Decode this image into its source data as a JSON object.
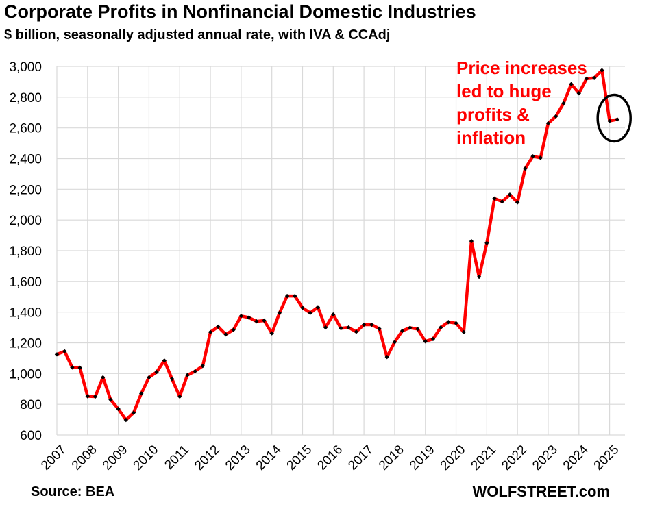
{
  "chart_data": {
    "type": "line",
    "title": "Corporate Profits in Nonfinancial Domestic Industries",
    "subtitle": "$ billion, seasonally adjusted annual rate, with IVA & CCAdj",
    "ylabel": "",
    "xlabel": "",
    "ylim": [
      600,
      3000
    ],
    "yticks": [
      "600",
      "800",
      "1,000",
      "1,200",
      "1,400",
      "1,600",
      "1,800",
      "2,000",
      "2,200",
      "2,400",
      "2,600",
      "2,800",
      "3,000"
    ],
    "ytick_values": [
      600,
      800,
      1000,
      1200,
      1400,
      1600,
      1800,
      2000,
      2200,
      2400,
      2600,
      2800,
      3000
    ],
    "xticks": [
      "2007",
      "2008",
      "2009",
      "2010",
      "2011",
      "2012",
      "2013",
      "2014",
      "2015",
      "2016",
      "2017",
      "2018",
      "2019",
      "2020",
      "2021",
      "2022",
      "2023",
      "2024",
      "2025"
    ],
    "xlim": [
      2007,
      2025.5
    ],
    "grid": true,
    "series": [
      {
        "name": "Corporate profits, nonfinancial domestic",
        "color": "#ff0000",
        "marker_color": "#000000",
        "x": [
          2007.0,
          2007.25,
          2007.5,
          2007.75,
          2008.0,
          2008.25,
          2008.5,
          2008.75,
          2009.0,
          2009.25,
          2009.5,
          2009.75,
          2010.0,
          2010.25,
          2010.5,
          2010.75,
          2011.0,
          2011.25,
          2011.5,
          2011.75,
          2012.0,
          2012.25,
          2012.5,
          2012.75,
          2013.0,
          2013.25,
          2013.5,
          2013.75,
          2014.0,
          2014.25,
          2014.5,
          2014.75,
          2015.0,
          2015.25,
          2015.5,
          2015.75,
          2016.0,
          2016.25,
          2016.5,
          2016.75,
          2017.0,
          2017.25,
          2017.5,
          2017.75,
          2018.0,
          2018.25,
          2018.5,
          2018.75,
          2019.0,
          2019.25,
          2019.5,
          2019.75,
          2020.0,
          2020.25,
          2020.5,
          2020.75,
          2021.0,
          2021.25,
          2021.5,
          2021.75,
          2022.0,
          2022.25,
          2022.5,
          2022.75,
          2023.0,
          2023.25,
          2023.5,
          2023.75,
          2024.0,
          2024.25,
          2024.5,
          2024.75,
          2025.0,
          2025.25
        ],
        "values": [
          1125,
          1145,
          1040,
          1038,
          852,
          850,
          975,
          830,
          770,
          698,
          745,
          870,
          975,
          1010,
          1085,
          965,
          850,
          990,
          1015,
          1050,
          1270,
          1305,
          1255,
          1285,
          1375,
          1365,
          1340,
          1345,
          1262,
          1395,
          1505,
          1505,
          1428,
          1395,
          1432,
          1300,
          1385,
          1295,
          1300,
          1272,
          1318,
          1318,
          1292,
          1108,
          1205,
          1278,
          1298,
          1290,
          1210,
          1225,
          1300,
          1335,
          1328,
          1270,
          1862,
          1630,
          1850,
          2140,
          2120,
          2165,
          2115,
          2335,
          2415,
          2405,
          2630,
          2675,
          2760,
          2885,
          2825,
          2920,
          2925,
          2975,
          2645,
          2655
        ]
      }
    ],
    "annotation": "Price increases\nled to huge\nprofits &\ninflation",
    "highlight": {
      "x": 2025.125,
      "y": 2650
    }
  },
  "source": "Source: BEA",
  "brand": "WOLFSTREET.com"
}
